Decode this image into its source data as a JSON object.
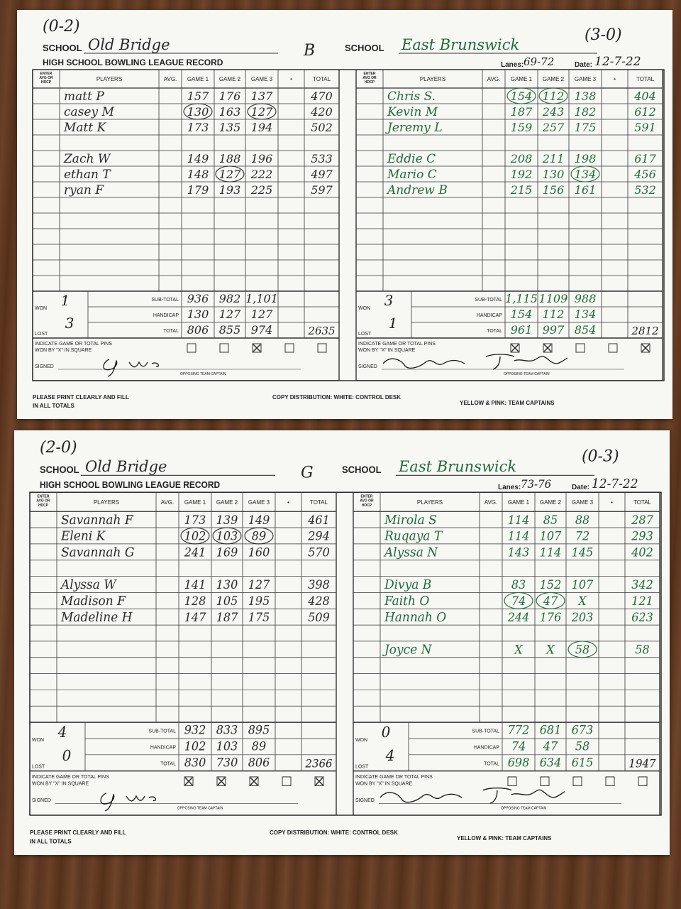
{
  "form": {
    "school": "SCHOOL",
    "title": "HIGH SCHOOL BOWLING LEAGUE RECORD",
    "enter": [
      "ENTER",
      "AVG OR",
      "HDCP"
    ],
    "players": "PLAYERS",
    "avg": "AVG.",
    "games": [
      "GAME 1",
      "GAME 2",
      "GAME 3"
    ],
    "dot": "•",
    "total": "TOTAL",
    "subtotal": "SUB-TOTAL",
    "handicap": "HANDICAP",
    "won": "WON",
    "lost": "LOST",
    "indicate": [
      "INDICATE GAME OR TOTAL PINS",
      "WON BY \"X\" IN SQUARE"
    ],
    "signed": "SIGNED",
    "captain": "OPPOSING TEAM CAPTAIN",
    "lanes": "Lanes:",
    "date": "Date:",
    "print": [
      "PLEASE PRINT CLEARLY AND FILL",
      "IN ALL TOTALS"
    ],
    "copy": "COPY DISTRIBUTION: WHITE: CONTROL DESK",
    "yellow": "YELLOW & PINK: TEAM CAPTAINS"
  },
  "cards": [
    {
      "division": "B",
      "teams": [
        {
          "record": "(0-2)",
          "school": "Old Bridge",
          "ink": "#2a2a2a",
          "players": [
            {
              "name": "matt P",
              "games": [
                157,
                176,
                137
              ],
              "total": 470
            },
            {
              "name": "casey M",
              "games": [
                130,
                163,
                127
              ],
              "total": 420,
              "circled": [
                0,
                2
              ]
            },
            {
              "name": "Matt K",
              "games": [
                173,
                135,
                194
              ],
              "total": 502
            },
            {
              "name": "Zach W",
              "games": [
                149,
                188,
                196
              ],
              "total": 533
            },
            {
              "name": "ethan T",
              "games": [
                148,
                127,
                222
              ],
              "total": 497,
              "circled": [
                1
              ]
            },
            {
              "name": "ryan F",
              "games": [
                179,
                193,
                225
              ],
              "total": 597
            }
          ],
          "subtotal": [
            936,
            982,
            "1,101"
          ],
          "handicap": [
            130,
            127,
            127
          ],
          "totals": [
            806,
            855,
            974
          ],
          "grand_total": 2635,
          "won": 1,
          "lost": 3,
          "won_marks": [
            false,
            false,
            true,
            false,
            false
          ]
        },
        {
          "record": "(3-0)",
          "school": "East Brunswick",
          "ink": "#1f6b3a",
          "lanes": "69-72",
          "date": "12-7-22",
          "players": [
            {
              "name": "Chris S.",
              "games": [
                154,
                112,
                138
              ],
              "total": 404,
              "circled": [
                0,
                1
              ]
            },
            {
              "name": "Kevin M",
              "games": [
                187,
                243,
                182
              ],
              "total": 612
            },
            {
              "name": "Jeremy L",
              "games": [
                159,
                257,
                175
              ],
              "total": 591
            },
            {
              "name": "Eddie C",
              "games": [
                208,
                211,
                198
              ],
              "total": 617
            },
            {
              "name": "Mario C",
              "games": [
                192,
                130,
                134
              ],
              "total": 456,
              "circled": [
                2
              ]
            },
            {
              "name": "Andrew B",
              "games": [
                215,
                156,
                161
              ],
              "total": 532
            }
          ],
          "subtotal": [
            "1,115",
            1109,
            988
          ],
          "handicap": [
            154,
            112,
            134
          ],
          "totals": [
            961,
            997,
            854
          ],
          "grand_total": 2812,
          "won": 3,
          "lost": 1,
          "won_marks": [
            true,
            true,
            false,
            false,
            true
          ]
        }
      ]
    },
    {
      "division": "G",
      "teams": [
        {
          "record": "(2-0)",
          "school": "Old Bridge",
          "ink": "#2a2a2a",
          "players": [
            {
              "name": "Savannah F",
              "games": [
                173,
                139,
                149
              ],
              "total": 461
            },
            {
              "name": "Eleni K",
              "games": [
                102,
                103,
                89
              ],
              "total": 294,
              "circled": [
                0,
                1,
                2
              ]
            },
            {
              "name": "Savannah G",
              "games": [
                241,
                169,
                160
              ],
              "total": 570
            },
            {
              "name": "Alyssa W",
              "games": [
                141,
                130,
                127
              ],
              "total": 398
            },
            {
              "name": "Madison F",
              "games": [
                128,
                105,
                195
              ],
              "total": 428
            },
            {
              "name": "Madeline H",
              "games": [
                147,
                187,
                175
              ],
              "total": 509
            }
          ],
          "subtotal": [
            932,
            833,
            895
          ],
          "handicap": [
            102,
            103,
            89
          ],
          "totals": [
            830,
            730,
            806
          ],
          "grand_total": 2366,
          "won": 4,
          "lost": 0,
          "won_marks": [
            true,
            true,
            true,
            false,
            true
          ]
        },
        {
          "record": "(0-3)",
          "school": "East Brunswick",
          "ink": "#1f6b3a",
          "lanes": "73-76",
          "date": "12-7-22",
          "players": [
            {
              "name": "Mirola S",
              "games": [
                114,
                85,
                88
              ],
              "total": 287
            },
            {
              "name": "Ruqaya T",
              "games": [
                114,
                107,
                72
              ],
              "total": 293
            },
            {
              "name": "Alyssa N",
              "games": [
                143,
                114,
                145
              ],
              "total": 402
            },
            {
              "name": "Divya B",
              "games": [
                83,
                152,
                107
              ],
              "total": 342
            },
            {
              "name": "Faith O",
              "games": [
                74,
                47,
                "X"
              ],
              "total": 121,
              "circled": [
                0,
                1
              ]
            },
            {
              "name": "Hannah O",
              "games": [
                244,
                176,
                203
              ],
              "total": 623
            },
            {
              "name": "Joyce N",
              "games": [
                "X",
                "X",
                58
              ],
              "total": 58,
              "circled": [
                2
              ]
            }
          ],
          "subtotal": [
            772,
            681,
            673
          ],
          "handicap": [
            74,
            47,
            58
          ],
          "totals": [
            698,
            634,
            615
          ],
          "grand_total": 1947,
          "won": 0,
          "lost": 4,
          "won_marks": [
            false,
            false,
            false,
            false,
            false
          ]
        }
      ]
    }
  ]
}
